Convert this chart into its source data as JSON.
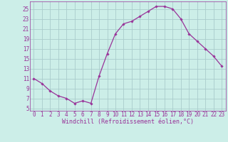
{
  "x": [
    0,
    1,
    2,
    3,
    4,
    5,
    6,
    7,
    8,
    9,
    10,
    11,
    12,
    13,
    14,
    15,
    16,
    17,
    18,
    19,
    20,
    21,
    22,
    23
  ],
  "y": [
    11,
    10,
    8.5,
    7.5,
    7,
    6,
    6.5,
    6,
    11.5,
    16,
    20,
    22,
    22.5,
    23.5,
    24.5,
    25.5,
    25.5,
    25,
    23,
    20,
    18.5,
    17,
    15.5,
    13.5
  ],
  "line_color": "#993399",
  "marker": "D",
  "marker_size": 1.8,
  "line_width": 0.9,
  "bg_color": "#cceee8",
  "grid_color": "#aacccc",
  "xlabel": "Windchill (Refroidissement éolien,°C)",
  "xlabel_color": "#993399",
  "ytick_labels": [
    "5",
    "7",
    "9",
    "11",
    "13",
    "15",
    "17",
    "19",
    "21",
    "23",
    "25"
  ],
  "ytick_values": [
    5,
    7,
    9,
    11,
    13,
    15,
    17,
    19,
    21,
    23,
    25
  ],
  "ylim": [
    4.5,
    26.5
  ],
  "xlim": [
    -0.5,
    23.5
  ],
  "tick_color": "#993399",
  "font_color": "#993399",
  "font_size": 5.5,
  "xlabel_fontsize": 6.0
}
